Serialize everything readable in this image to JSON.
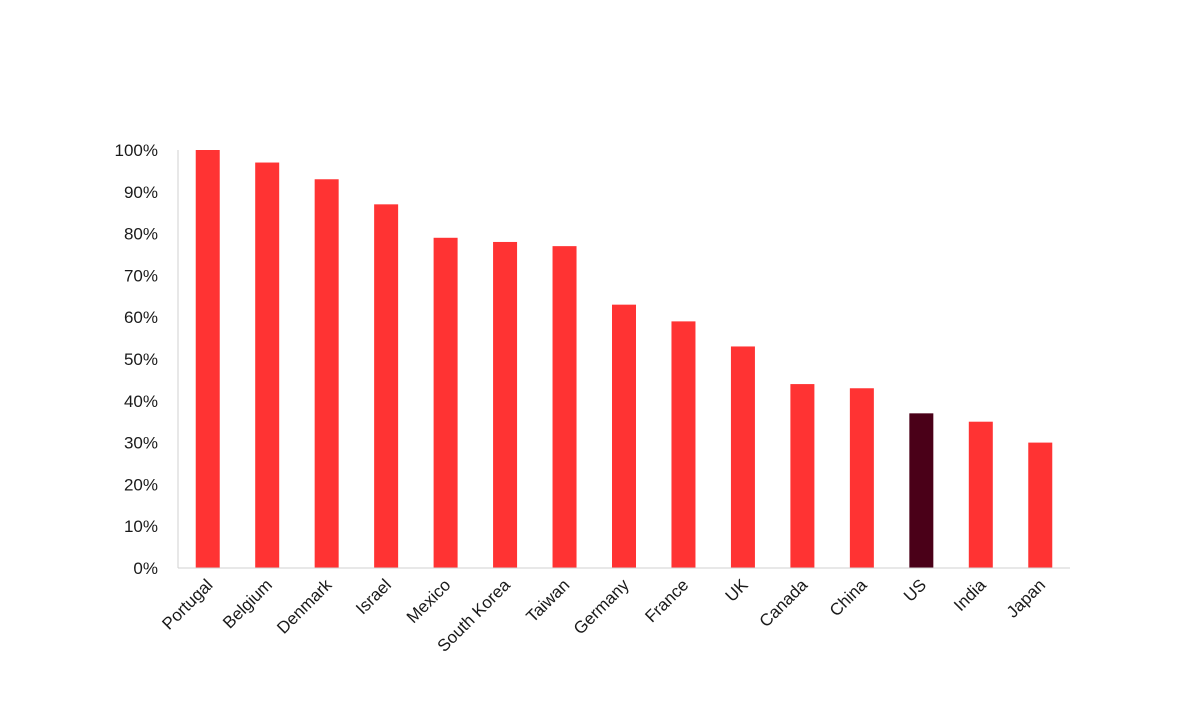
{
  "chart_data": {
    "type": "bar",
    "title": "",
    "xlabel": "",
    "ylabel": "",
    "categories": [
      "Portugal",
      "Belgium",
      "Denmark",
      "Israel",
      "Mexico",
      "South Korea",
      "Taiwan",
      "Germany",
      "France",
      "UK",
      "Canada",
      "China",
      "US",
      "India",
      "Japan"
    ],
    "values": [
      100,
      97,
      93,
      87,
      79,
      78,
      77,
      63,
      59,
      53,
      44,
      43,
      37,
      35,
      30
    ],
    "highlight_category": "US",
    "ylim": [
      0,
      100
    ],
    "yticks": [
      0,
      10,
      20,
      30,
      40,
      50,
      60,
      70,
      80,
      90,
      100
    ],
    "ytick_labels": [
      "0%",
      "10%",
      "20%",
      "30%",
      "40%",
      "50%",
      "60%",
      "70%",
      "80%",
      "90%",
      "100%"
    ],
    "grid": false,
    "legend": "none",
    "colors": {
      "bar": "#ff3333",
      "highlight": "#4a0018",
      "axis": "#d0d0d0"
    }
  }
}
